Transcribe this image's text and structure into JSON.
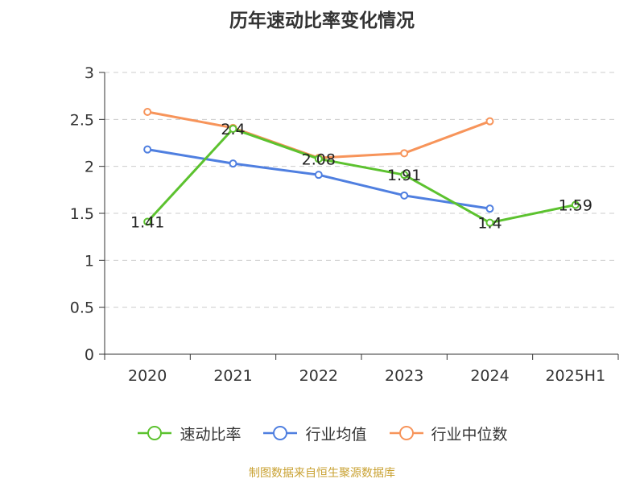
{
  "page": {
    "source": "制图数据来自恒生聚源数据库"
  },
  "chart_data": {
    "type": "line",
    "title": "历年速动比率变化情况",
    "xlabel": "",
    "ylabel": "",
    "categories": [
      "2020",
      "2021",
      "2022",
      "2023",
      "2024",
      "2025H1"
    ],
    "ylim": [
      0,
      3
    ],
    "yticks": [
      0,
      0.5,
      1,
      1.5,
      2,
      2.5,
      3
    ],
    "ytick_labels": [
      "0",
      "0.5",
      "1",
      "1.5",
      "2",
      "2.5",
      "3"
    ],
    "grid": true,
    "legend_position": "bottom",
    "series": [
      {
        "name": "速动比率",
        "color": "#5cc22f",
        "values": [
          1.41,
          2.4,
          2.08,
          1.91,
          1.4,
          1.59
        ],
        "labels": [
          "1.41",
          "2.4",
          "2.08",
          "1.91",
          "1.4",
          "1.59"
        ]
      },
      {
        "name": "行业均值",
        "color": "#4f7fe0",
        "values": [
          2.18,
          2.03,
          1.91,
          1.69,
          1.55,
          null
        ]
      },
      {
        "name": "行业中位数",
        "color": "#f7945a",
        "values": [
          2.58,
          2.41,
          2.09,
          2.14,
          2.48,
          null
        ]
      }
    ]
  }
}
